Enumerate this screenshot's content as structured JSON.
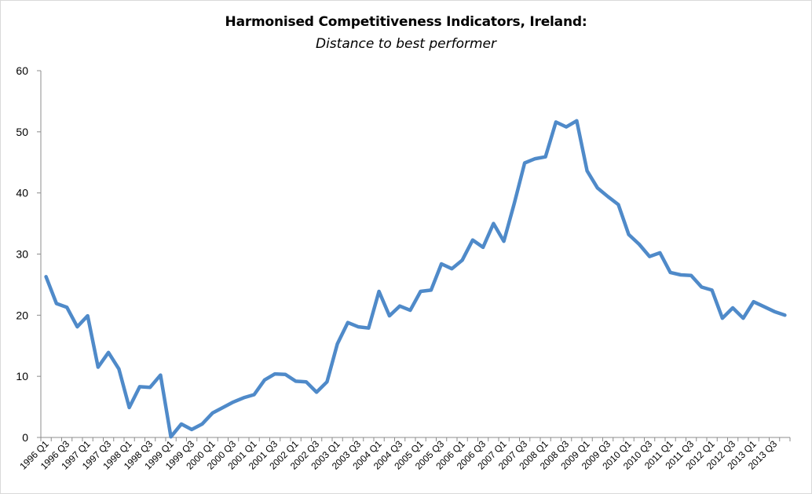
{
  "chart_data": {
    "type": "line",
    "title": "Harmonised Competitiveness Indicators, Ireland:",
    "subtitle": "Distance to best performer",
    "xlabel": "",
    "ylabel": "",
    "ylim": [
      0,
      60
    ],
    "yticks": [
      "0",
      "10",
      "20",
      "30",
      "40",
      "50",
      "60"
    ],
    "grid": false,
    "legend": "none",
    "line_color": "#4f8ac9",
    "x_tick_labels": [
      "1996 Q1",
      "1996 Q3",
      "1997 Q1",
      "1997 Q3",
      "1998 Q1",
      "1998 Q3",
      "1999 Q1",
      "1999 Q3",
      "2000 Q1",
      "2000 Q3",
      "2001 Q1",
      "2001 Q3",
      "2002 Q1",
      "2002 Q3",
      "2003 Q1",
      "2003 Q3",
      "2004 Q1",
      "2004 Q3",
      "2005 Q1",
      "2005 Q3",
      "2006 Q1",
      "2006 Q3",
      "2007 Q1",
      "2007 Q3",
      "2008 Q1",
      "2008 Q3",
      "2009 Q1",
      "2009 Q3",
      "2010 Q1",
      "2010 Q3",
      "2011 Q1",
      "2011 Q3",
      "2012 Q1",
      "2012 Q3",
      "2013 Q1",
      "2013 Q3"
    ],
    "x": [
      "1996 Q1",
      "1996 Q2",
      "1996 Q3",
      "1996 Q4",
      "1997 Q1",
      "1997 Q2",
      "1997 Q3",
      "1997 Q4",
      "1998 Q1",
      "1998 Q2",
      "1998 Q3",
      "1998 Q4",
      "1999 Q1",
      "1999 Q2",
      "1999 Q3",
      "1999 Q4",
      "2000 Q1",
      "2000 Q2",
      "2000 Q3",
      "2000 Q4",
      "2001 Q1",
      "2001 Q2",
      "2001 Q3",
      "2001 Q4",
      "2002 Q1",
      "2002 Q2",
      "2002 Q3",
      "2002 Q4",
      "2003 Q1",
      "2003 Q2",
      "2003 Q3",
      "2003 Q4",
      "2004 Q1",
      "2004 Q2",
      "2004 Q3",
      "2004 Q4",
      "2005 Q1",
      "2005 Q2",
      "2005 Q3",
      "2005 Q4",
      "2006 Q1",
      "2006 Q2",
      "2006 Q3",
      "2006 Q4",
      "2007 Q1",
      "2007 Q2",
      "2007 Q3",
      "2007 Q4",
      "2008 Q1",
      "2008 Q2",
      "2008 Q3",
      "2008 Q4",
      "2009 Q1",
      "2009 Q2",
      "2009 Q3",
      "2009 Q4",
      "2010 Q1",
      "2010 Q2",
      "2010 Q3",
      "2010 Q4",
      "2011 Q1",
      "2011 Q2",
      "2011 Q3",
      "2011 Q4",
      "2012 Q1",
      "2012 Q2",
      "2012 Q3",
      "2012 Q4",
      "2013 Q1",
      "2013 Q2",
      "2013 Q3",
      "2013 Q4"
    ],
    "values": [
      26.3,
      21.9,
      21.3,
      18.1,
      19.9,
      11.5,
      13.9,
      11.2,
      4.9,
      8.3,
      8.2,
      10.2,
      0.1,
      2.2,
      1.3,
      2.2,
      4.0,
      4.9,
      5.8,
      6.5,
      7.0,
      9.4,
      10.4,
      10.3,
      9.2,
      9.1,
      7.4,
      9.1,
      15.3,
      18.8,
      18.1,
      17.9,
      23.9,
      19.9,
      21.5,
      20.8,
      23.9,
      24.1,
      28.4,
      27.6,
      29.0,
      32.3,
      31.1,
      35.0,
      32.1,
      38.3,
      44.9,
      45.6,
      45.9,
      51.6,
      50.8,
      51.8,
      43.6,
      40.8,
      39.4,
      38.1,
      33.2,
      31.6,
      29.6,
      30.2,
      27.0,
      26.6,
      26.5,
      24.6,
      24.1,
      19.5,
      21.2,
      19.5,
      22.2,
      21.4,
      20.6,
      20.0
    ]
  }
}
